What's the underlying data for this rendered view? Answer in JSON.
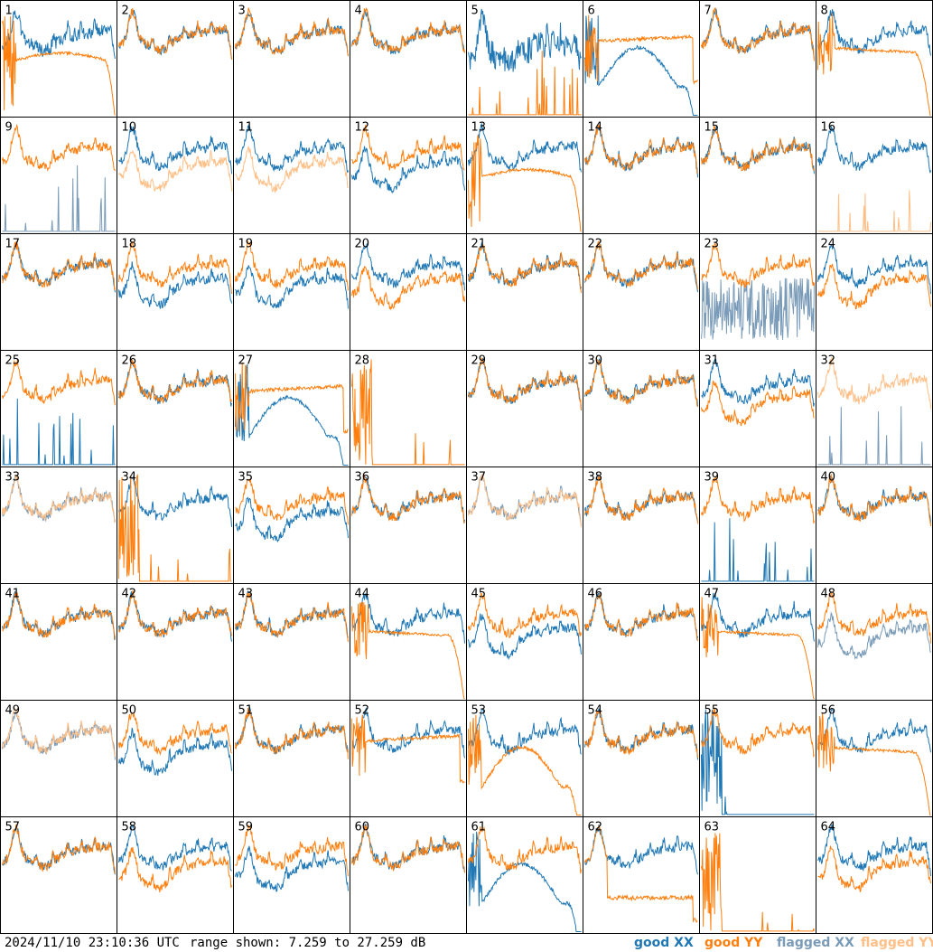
{
  "footer": {
    "timestamp": "2024/11/10 23:10:36 UTC",
    "range": "range shown: 7.259 to 27.259 dB"
  },
  "legend": {
    "good_xx": {
      "label": "good XX",
      "color": "#1f77b4"
    },
    "good_yy": {
      "label": "good YY",
      "color": "#ff7f0e"
    },
    "flagged_xx": {
      "label": "flagged XX",
      "color": "#7a9bb8"
    },
    "flagged_yy": {
      "label": "flagged YY",
      "color": "#ffbf86"
    }
  },
  "chart_data": {
    "type": "line",
    "layout": "8x8 small multiples of antenna spectra",
    "y_range_db": [
      7.259,
      27.259
    ],
    "tiles": [
      {
        "id": "1",
        "xx": "good",
        "yy": "good",
        "xx_shape": "dip_noisy",
        "yy_shape": "falling_droop"
      },
      {
        "id": "2",
        "xx": "good",
        "yy": "good",
        "xx_shape": "normal",
        "yy_shape": "normal"
      },
      {
        "id": "3",
        "xx": "good",
        "yy": "good",
        "xx_shape": "normal",
        "yy_shape": "normal"
      },
      {
        "id": "4",
        "xx": "good",
        "yy": "good",
        "xx_shape": "normal",
        "yy_shape": "normal"
      },
      {
        "id": "5",
        "xx": "good",
        "yy": "good",
        "xx_shape": "normal_noisy",
        "yy_shape": "spiky_floor"
      },
      {
        "id": "6",
        "xx": "good",
        "yy": "good",
        "xx_shape": "dip_hump_droop",
        "yy_shape": "flat_high"
      },
      {
        "id": "7",
        "xx": "good",
        "yy": "good",
        "xx_shape": "normal",
        "yy_shape": "normal"
      },
      {
        "id": "8",
        "xx": "good",
        "yy": "good",
        "xx_shape": "normal",
        "yy_shape": "flat_droop_end"
      },
      {
        "id": "9",
        "xx": "flagged",
        "yy": "good",
        "xx_shape": "spiky_floor",
        "yy_shape": "normal"
      },
      {
        "id": "10",
        "xx": "good",
        "yy": "flagged",
        "xx_shape": "normal",
        "yy_shape": "normal_low"
      },
      {
        "id": "11",
        "xx": "good",
        "yy": "flagged",
        "xx_shape": "normal",
        "yy_shape": "normal_low"
      },
      {
        "id": "12",
        "xx": "good",
        "yy": "good",
        "xx_shape": "normal_low",
        "yy_shape": "normal"
      },
      {
        "id": "13",
        "xx": "good",
        "yy": "good",
        "xx_shape": "normal",
        "yy_shape": "falling_droop"
      },
      {
        "id": "14",
        "xx": "good",
        "yy": "good",
        "xx_shape": "normal",
        "yy_shape": "normal"
      },
      {
        "id": "15",
        "xx": "good",
        "yy": "good",
        "xx_shape": "normal",
        "yy_shape": "normal"
      },
      {
        "id": "16",
        "xx": "good",
        "yy": "flagged",
        "xx_shape": "normal",
        "yy_shape": "spiky_floor"
      },
      {
        "id": "17",
        "xx": "good",
        "yy": "good",
        "xx_shape": "normal",
        "yy_shape": "normal"
      },
      {
        "id": "18",
        "xx": "good",
        "yy": "good",
        "xx_shape": "normal_low",
        "yy_shape": "normal"
      },
      {
        "id": "19",
        "xx": "good",
        "yy": "good",
        "xx_shape": "normal_low",
        "yy_shape": "normal"
      },
      {
        "id": "20",
        "xx": "good",
        "yy": "good",
        "xx_shape": "normal",
        "yy_shape": "normal_low"
      },
      {
        "id": "21",
        "xx": "good",
        "yy": "good",
        "xx_shape": "normal",
        "yy_shape": "normal"
      },
      {
        "id": "22",
        "xx": "good",
        "yy": "good",
        "xx_shape": "normal",
        "yy_shape": "normal"
      },
      {
        "id": "23",
        "xx": "flagged",
        "yy": "good",
        "xx_shape": "jagged",
        "yy_shape": "normal"
      },
      {
        "id": "24",
        "xx": "good",
        "yy": "good",
        "xx_shape": "normal",
        "yy_shape": "normal_low"
      },
      {
        "id": "25",
        "xx": "good",
        "yy": "good",
        "xx_shape": "spiky_floor",
        "yy_shape": "normal"
      },
      {
        "id": "26",
        "xx": "good",
        "yy": "good",
        "xx_shape": "normal",
        "yy_shape": "normal"
      },
      {
        "id": "27",
        "xx": "good",
        "yy": "good",
        "xx_shape": "dip_hump_droop",
        "yy_shape": "flat_high"
      },
      {
        "id": "28",
        "xx": "good",
        "yy": "good",
        "xx_shape": "none",
        "yy_shape": "spiky_left"
      },
      {
        "id": "29",
        "xx": "good",
        "yy": "good",
        "xx_shape": "normal",
        "yy_shape": "normal"
      },
      {
        "id": "30",
        "xx": "good",
        "yy": "good",
        "xx_shape": "normal",
        "yy_shape": "normal"
      },
      {
        "id": "31",
        "xx": "good",
        "yy": "good",
        "xx_shape": "normal",
        "yy_shape": "normal_low"
      },
      {
        "id": "32",
        "xx": "flagged",
        "yy": "flagged",
        "xx_shape": "spiky_floor",
        "yy_shape": "normal"
      },
      {
        "id": "33",
        "xx": "flagged",
        "yy": "flagged",
        "xx_shape": "normal",
        "yy_shape": "normal"
      },
      {
        "id": "34",
        "xx": "good",
        "yy": "good",
        "xx_shape": "normal",
        "yy_shape": "spiky_left"
      },
      {
        "id": "35",
        "xx": "good",
        "yy": "good",
        "xx_shape": "normal_low",
        "yy_shape": "normal"
      },
      {
        "id": "36",
        "xx": "good",
        "yy": "good",
        "xx_shape": "normal",
        "yy_shape": "normal"
      },
      {
        "id": "37",
        "xx": "flagged",
        "yy": "flagged",
        "xx_shape": "normal",
        "yy_shape": "normal"
      },
      {
        "id": "38",
        "xx": "good",
        "yy": "good",
        "xx_shape": "normal",
        "yy_shape": "normal"
      },
      {
        "id": "39",
        "xx": "good",
        "yy": "good",
        "xx_shape": "spiky_floor",
        "yy_shape": "normal"
      },
      {
        "id": "40",
        "xx": "good",
        "yy": "good",
        "xx_shape": "normal",
        "yy_shape": "normal"
      },
      {
        "id": "41",
        "xx": "good",
        "yy": "good",
        "xx_shape": "normal",
        "yy_shape": "normal"
      },
      {
        "id": "42",
        "xx": "good",
        "yy": "good",
        "xx_shape": "normal",
        "yy_shape": "normal"
      },
      {
        "id": "43",
        "xx": "good",
        "yy": "good",
        "xx_shape": "normal",
        "yy_shape": "normal"
      },
      {
        "id": "44",
        "xx": "good",
        "yy": "good",
        "xx_shape": "normal",
        "yy_shape": "flat_droop_end"
      },
      {
        "id": "45",
        "xx": "good",
        "yy": "good",
        "xx_shape": "normal_low",
        "yy_shape": "normal"
      },
      {
        "id": "46",
        "xx": "good",
        "yy": "good",
        "xx_shape": "normal",
        "yy_shape": "normal"
      },
      {
        "id": "47",
        "xx": "good",
        "yy": "good",
        "xx_shape": "normal",
        "yy_shape": "flat_droop_end"
      },
      {
        "id": "48",
        "xx": "flagged",
        "yy": "good",
        "xx_shape": "normal_low",
        "yy_shape": "normal"
      },
      {
        "id": "49",
        "xx": "flagged",
        "yy": "flagged",
        "xx_shape": "normal",
        "yy_shape": "normal"
      },
      {
        "id": "50",
        "xx": "good",
        "yy": "good",
        "xx_shape": "normal_low",
        "yy_shape": "normal"
      },
      {
        "id": "51",
        "xx": "good",
        "yy": "good",
        "xx_shape": "normal",
        "yy_shape": "normal"
      },
      {
        "id": "52",
        "xx": "good",
        "yy": "good",
        "xx_shape": "normal",
        "yy_shape": "flat_high"
      },
      {
        "id": "53",
        "xx": "good",
        "yy": "good",
        "xx_shape": "normal",
        "yy_shape": "dip_hump_droop"
      },
      {
        "id": "54",
        "xx": "good",
        "yy": "good",
        "xx_shape": "normal",
        "yy_shape": "normal"
      },
      {
        "id": "55",
        "xx": "good",
        "yy": "good",
        "xx_shape": "spiky_left",
        "yy_shape": "normal"
      },
      {
        "id": "56",
        "xx": "good",
        "yy": "good",
        "xx_shape": "normal",
        "yy_shape": "flat_droop_end"
      },
      {
        "id": "57",
        "xx": "good",
        "yy": "good",
        "xx_shape": "normal",
        "yy_shape": "normal"
      },
      {
        "id": "58",
        "xx": "good",
        "yy": "good",
        "xx_shape": "normal",
        "yy_shape": "normal_low"
      },
      {
        "id": "59",
        "xx": "good",
        "yy": "good",
        "xx_shape": "normal_low",
        "yy_shape": "normal"
      },
      {
        "id": "60",
        "xx": "good",
        "yy": "good",
        "xx_shape": "normal",
        "yy_shape": "normal"
      },
      {
        "id": "61",
        "xx": "good",
        "yy": "good",
        "xx_shape": "dip_hump_droop",
        "yy_shape": "normal"
      },
      {
        "id": "62",
        "xx": "good",
        "yy": "good",
        "xx_shape": "normal",
        "yy_shape": "flat_mid"
      },
      {
        "id": "63",
        "xx": "good",
        "yy": "good",
        "xx_shape": "none",
        "yy_shape": "spiky_left"
      },
      {
        "id": "64",
        "xx": "good",
        "yy": "good",
        "xx_shape": "normal",
        "yy_shape": "normal_low"
      }
    ]
  }
}
